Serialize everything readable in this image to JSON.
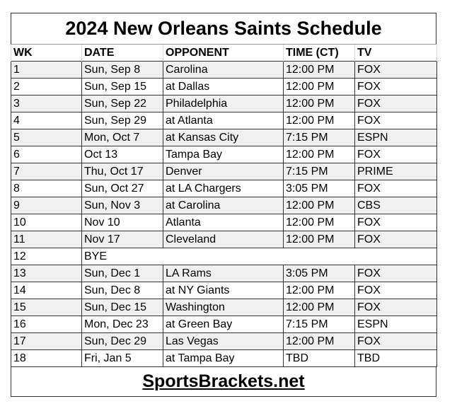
{
  "title": "2024 New Orleans Saints Schedule",
  "headers": [
    "WK",
    "DATE",
    "OPPONENT",
    "TIME (CT)",
    "TV"
  ],
  "rows": [
    [
      "1",
      "Sun, Sep 8",
      "Carolina",
      "12:00 PM",
      "FOX"
    ],
    [
      "2",
      "Sun, Sep 15",
      "at Dallas",
      "12:00 PM",
      "FOX"
    ],
    [
      "3",
      "Sun, Sep 22",
      "Philadelphia",
      "12:00 PM",
      "FOX"
    ],
    [
      "4",
      "Sun, Sep 29",
      "at Atlanta",
      "12:00 PM",
      "FOX"
    ],
    [
      "5",
      "Mon, Oct 7",
      "at Kansas City",
      "7:15 PM",
      "ESPN"
    ],
    [
      "6",
      "Oct 13",
      "Tampa Bay",
      "12:00 PM",
      "FOX"
    ],
    [
      "7",
      "Thu, Oct 17",
      "Denver",
      "7:15 PM",
      "PRIME"
    ],
    [
      "8",
      "Sun, Oct 27",
      "at LA Chargers",
      "3:05 PM",
      "FOX"
    ],
    [
      "9",
      "Sun, Nov 3",
      "at Carolina",
      "12:00 PM",
      "CBS"
    ],
    [
      "10",
      "Nov 10",
      "Atlanta",
      "12:00 PM",
      "FOX"
    ],
    [
      "11",
      "Nov 17",
      "Cleveland",
      "12:00 PM",
      "FOX"
    ],
    [
      "12",
      "BYE",
      "",
      "",
      ""
    ],
    [
      "13",
      "Sun, Dec 1",
      "LA Rams",
      "3:05 PM",
      "FOX"
    ],
    [
      "14",
      "Sun, Dec 8",
      "at NY Giants",
      "12:00 PM",
      "FOX"
    ],
    [
      "15",
      "Sun, Dec 15",
      "Washington",
      "12:00 PM",
      "FOX"
    ],
    [
      "16",
      "Mon, Dec 23",
      "at Green Bay",
      "7:15 PM",
      "ESPN"
    ],
    [
      "17",
      "Sun, Dec 29",
      "Las Vegas",
      "12:00 PM",
      "FOX"
    ],
    [
      "18",
      "Fri, Jan 5",
      "at Tampa Bay",
      "TBD",
      "TBD"
    ]
  ],
  "footer": "SportsBrackets.net",
  "colors": {
    "shaded_row": "#f0f0f0",
    "border": "#333333"
  }
}
